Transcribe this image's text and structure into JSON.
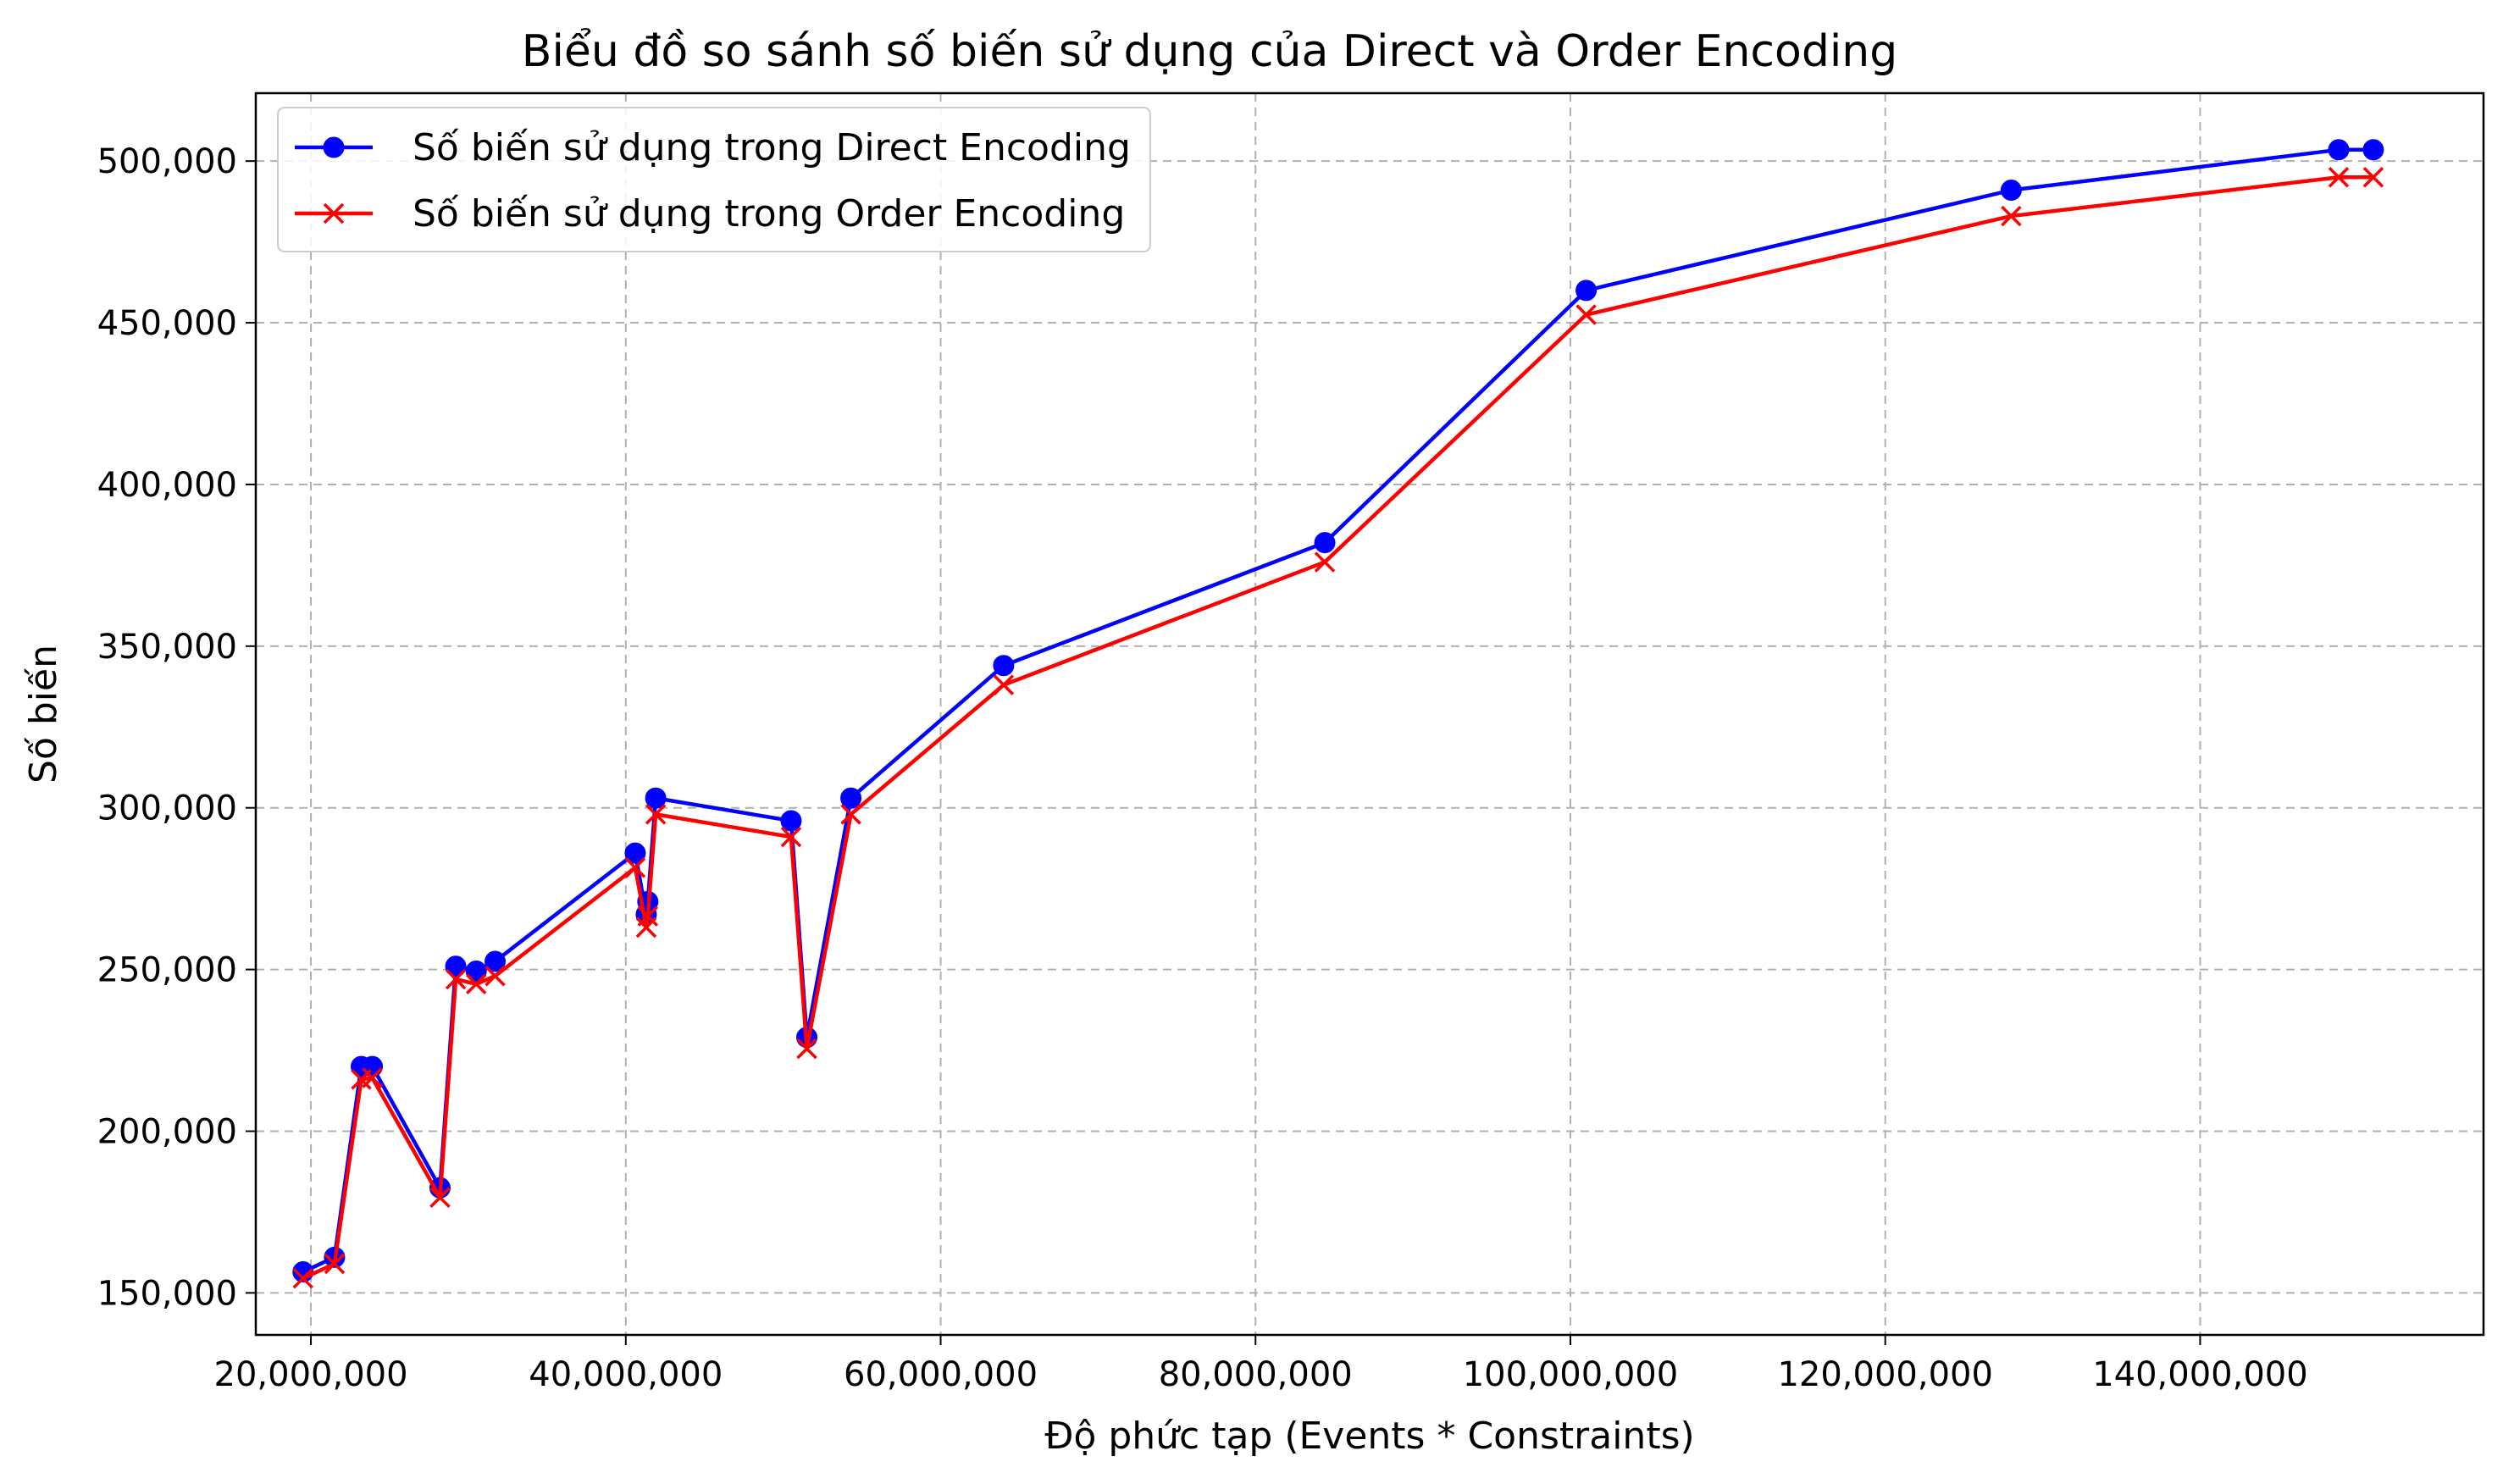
{
  "chart_data": {
    "type": "line",
    "title": "Biểu đồ so sánh số biến sử dụng của Direct và Order Encoding",
    "xlabel": "Độ phức tạp (Events * Constraints)",
    "ylabel": "Số biến",
    "xlim": [
      16500000,
      158000000
    ],
    "ylim": [
      137000,
      521000
    ],
    "x_ticks": [
      20000000,
      40000000,
      60000000,
      80000000,
      100000000,
      120000000,
      140000000
    ],
    "x_tick_labels": [
      "20,000,000",
      "40,000,000",
      "60,000,000",
      "80,000,000",
      "100,000,000",
      "120,000,000",
      "140,000,000"
    ],
    "y_ticks": [
      150000,
      200000,
      250000,
      300000,
      350000,
      400000,
      450000,
      500000
    ],
    "y_tick_labels": [
      "150,000",
      "200,000",
      "250,000",
      "300,000",
      "350,000",
      "400,000",
      "450,000",
      "500,000"
    ],
    "grid": true,
    "legend_position": "top-left",
    "x": [
      19500000,
      21500000,
      23200000,
      23900000,
      28200000,
      29200000,
      30500000,
      31700000,
      40600000,
      41300000,
      41400000,
      41900000,
      50500000,
      51500000,
      54300000,
      64000000,
      84400000,
      101000000,
      128000000,
      148800000,
      151000000
    ],
    "series": [
      {
        "name": "Số biến sử dụng trong Direct Encoding",
        "color": "#0000ff",
        "marker": "circle",
        "values": [
          156500,
          161000,
          220000,
          220000,
          182500,
          251000,
          249500,
          252500,
          286000,
          267000,
          271000,
          303000,
          296000,
          229000,
          303000,
          344000,
          382000,
          460000,
          491000,
          503500,
          503500
        ]
      },
      {
        "name": "Số biến sử dụng trong Order Encoding",
        "color": "#ff0000",
        "marker": "x",
        "values": [
          154500,
          159000,
          216000,
          216500,
          179500,
          247000,
          245500,
          248000,
          281500,
          263000,
          266500,
          298000,
          291000,
          225500,
          298000,
          338000,
          376000,
          452500,
          483000,
          495000,
          495000
        ]
      }
    ]
  }
}
